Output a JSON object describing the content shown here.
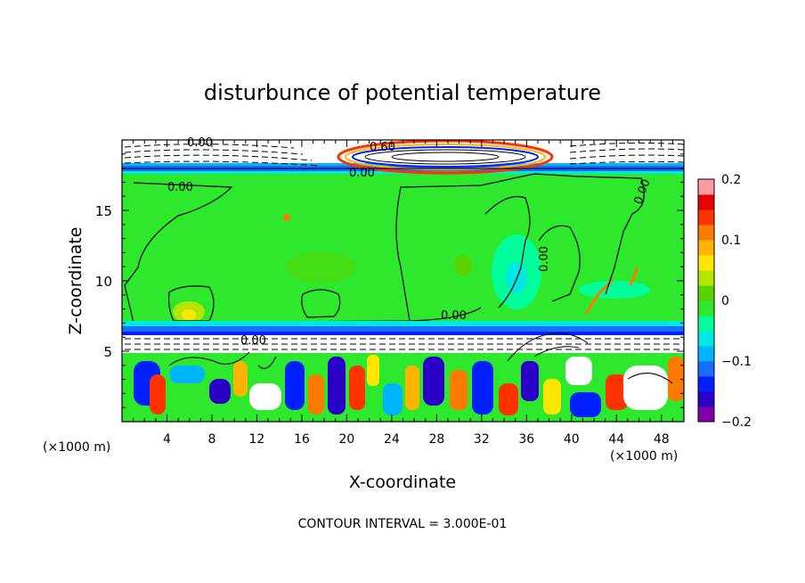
{
  "chart_data": {
    "type": "heatmap",
    "title": "disturbunce of potential temperature",
    "xlabel": "X-coordinate",
    "ylabel": "Z-coordinate",
    "x_unit": "(×1000 m)",
    "xlim": [
      0,
      50
    ],
    "ylim": [
      0,
      20
    ],
    "x_ticks": [
      "4",
      "8",
      "12",
      "16",
      "20",
      "24",
      "28",
      "32",
      "36",
      "40",
      "44",
      "48"
    ],
    "x_tick_values": [
      4,
      8,
      12,
      16,
      20,
      24,
      28,
      32,
      36,
      40,
      44,
      48
    ],
    "y_ticks": [
      "5",
      "10",
      "15"
    ],
    "y_tick_values": [
      5,
      10,
      15
    ],
    "colorbar": {
      "range": [
        -0.2,
        0.2
      ],
      "tick_labels": [
        "0.2",
        "0.1",
        "0",
        "−0.1",
        "−0.2"
      ],
      "tick_values": [
        0.2,
        0.1,
        0,
        -0.1,
        -0.2
      ],
      "colors": [
        "#7f00a8",
        "#2a00c8",
        "#0020ff",
        "#1a6cff",
        "#00b4ff",
        "#00e8e0",
        "#00ff9a",
        "#2ee82e",
        "#5ad400",
        "#b4e600",
        "#ffe600",
        "#ffb400",
        "#ff7a00",
        "#ff3200",
        "#e60000",
        "#ff9aa0"
      ]
    },
    "contour_labels": [
      "0.00",
      "0.60",
      "0.00",
      "0.00",
      "0.00",
      "0.00",
      "0.00",
      "0.00"
    ],
    "footer": "CONTOUR INTERVAL = 3.000E-01"
  }
}
